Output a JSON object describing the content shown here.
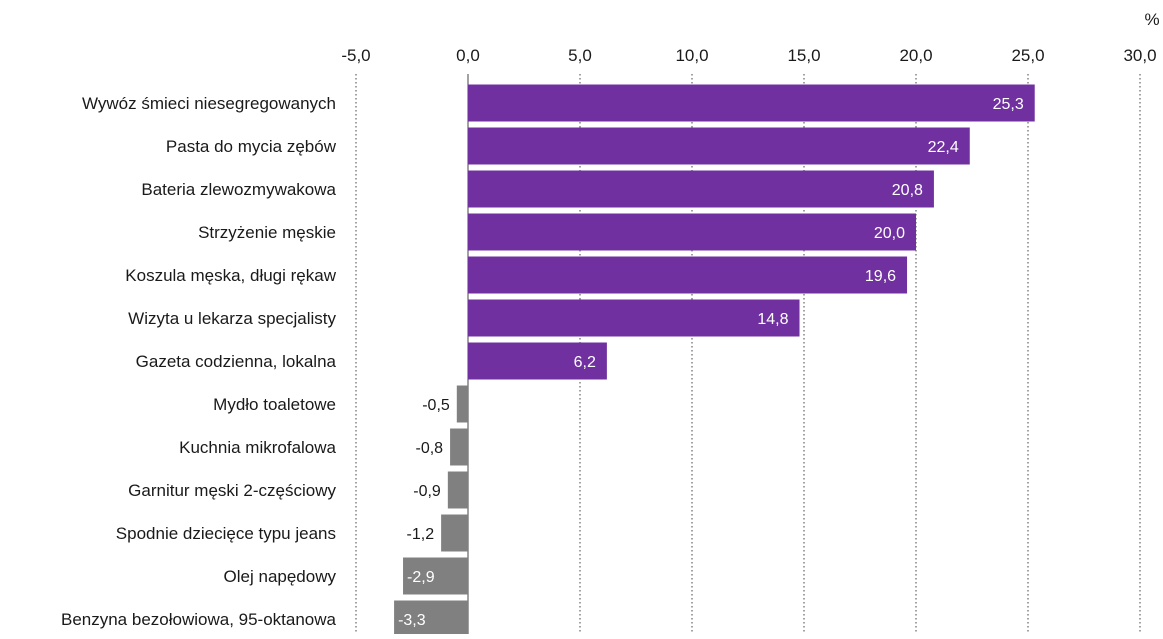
{
  "chart_data": {
    "type": "bar",
    "orientation": "horizontal",
    "unit": "%",
    "categories": [
      "Wywóz śmieci niesegregowanych ",
      "Pasta do mycia zębów",
      "Bateria zlewozmywakowa",
      "Strzyżenie męskie",
      "Koszula męska, długi rękaw",
      "Wizyta u lekarza specjalisty",
      "Gazeta codzienna, lokalna",
      "Mydło toaletowe",
      "Kuchnia mikrofalowa",
      "Garnitur męski 2-częściowy",
      "Spodnie dziecięce typu jeans",
      "Olej napędowy",
      "Benzyna bezołowiowa, 95-oktanowa"
    ],
    "values": [
      25.3,
      22.4,
      20.8,
      20.0,
      19.6,
      14.8,
      6.2,
      -0.5,
      -0.8,
      -0.9,
      -1.2,
      -2.9,
      -3.3
    ],
    "value_labels": [
      "25,3",
      "22,4",
      "20,8",
      "20,0",
      "19,6",
      "14,8",
      "6,2",
      "-0,5",
      "-0,8",
      "-0,9",
      "-1,2",
      "-2,9",
      "-3,3"
    ],
    "xlim": [
      -5,
      30
    ],
    "xticks": [
      -5,
      0,
      5,
      10,
      15,
      20,
      25,
      30
    ],
    "xtick_labels": [
      "-5,0",
      "0,0",
      "5,0",
      "10,0",
      "15,0",
      "20,0",
      "25,0",
      "30,0"
    ],
    "axis_position": "top",
    "grid": true,
    "grid_style": "dotted vertical",
    "colors": {
      "positive": "#7030a0",
      "negative": "#808080",
      "grid": "#444444",
      "zero_line": "#444444"
    }
  }
}
